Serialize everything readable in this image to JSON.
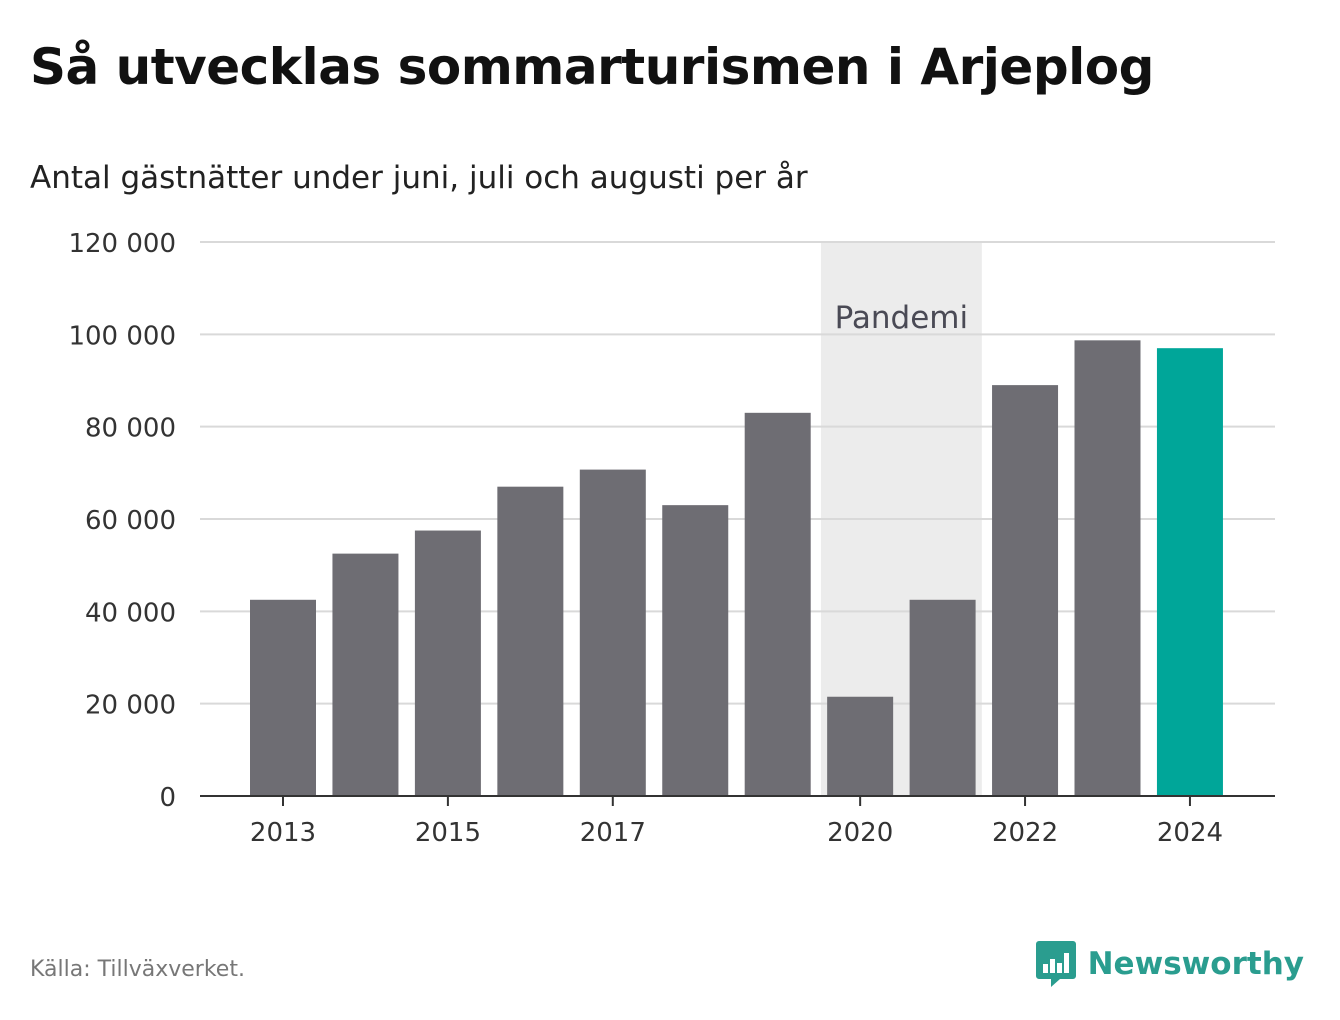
{
  "title": "Så utvecklas sommarturismen i Arjeplog",
  "subtitle": "Antal gästnätter under juni, juli och augusti per år",
  "source": "Källa: Tillväxverket.",
  "brand": {
    "name": "Newsworthy",
    "icon": "newsworthy-logo-icon"
  },
  "colors": {
    "bar": "#6e6d73",
    "highlight": "#00a699",
    "pandemic_band": "#ececec",
    "grid": "#d9d9d9",
    "axis": "#333333"
  },
  "chart_data": {
    "type": "bar",
    "title": "Så utvecklas sommarturismen i Arjeplog",
    "subtitle": "Antal gästnätter under juni, juli och augusti per år",
    "xlabel": "",
    "ylabel": "",
    "categories": [
      2013,
      2014,
      2015,
      2016,
      2017,
      2018,
      2019,
      2020,
      2021,
      2022,
      2023,
      2024
    ],
    "x_tick_labels": [
      "2013",
      "2015",
      "2017",
      "2020",
      "2022",
      "2024"
    ],
    "values": [
      42500,
      52500,
      57500,
      67000,
      70700,
      63000,
      83000,
      21500,
      42500,
      89000,
      98700,
      97000
    ],
    "highlight_category": 2024,
    "ylim": [
      0,
      120000
    ],
    "y_ticks": [
      0,
      20000,
      40000,
      60000,
      80000,
      100000,
      120000
    ],
    "y_tick_labels": [
      "0",
      "20 000",
      "40 000",
      "60 000",
      "80 000",
      "100 000",
      "120 000"
    ],
    "grid": true,
    "legend": "none",
    "annotation": {
      "label": "Pandemi",
      "from": 2020,
      "to": 2021
    }
  }
}
